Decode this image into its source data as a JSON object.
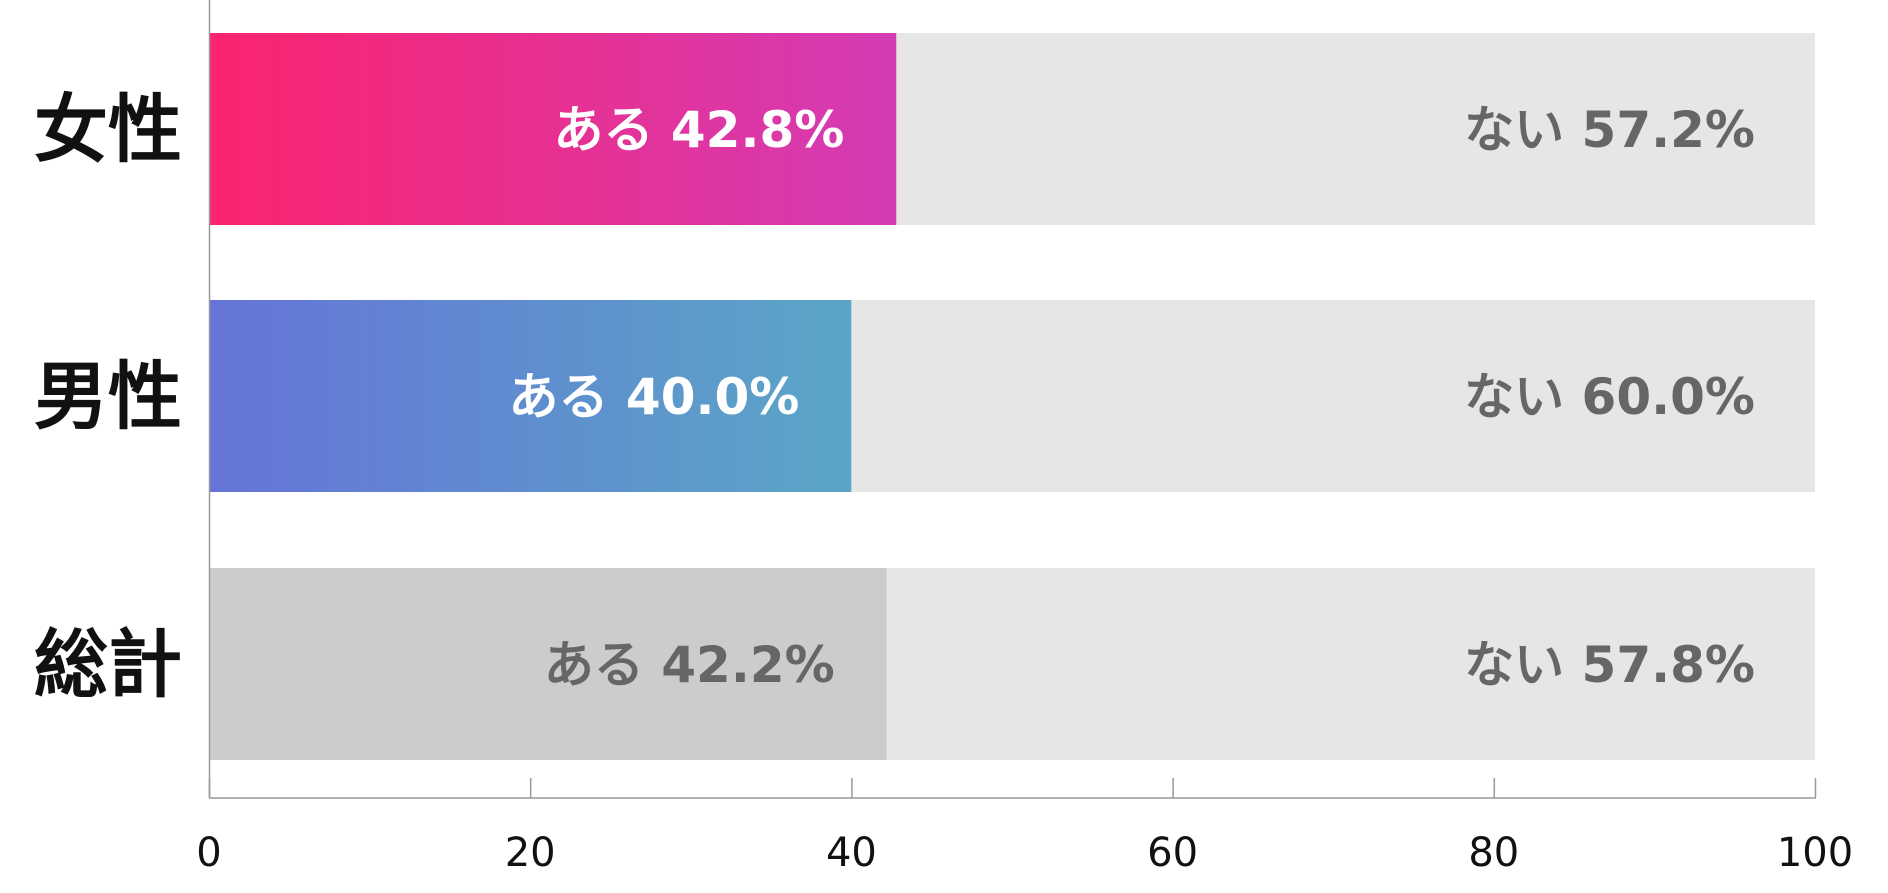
{
  "chart_data": {
    "type": "bar",
    "orientation": "horizontal",
    "stacked": true,
    "categories": [
      "女性",
      "男性",
      "総計"
    ],
    "series": [
      {
        "name": "ある",
        "values": [
          42.8,
          40.0,
          42.2
        ],
        "labels": [
          "ある 42.8%",
          "ある 40.0%",
          "ある 42.2%"
        ],
        "colors": [
          [
            "#fa2470",
            "#d43cb4"
          ],
          [
            "#6574d8",
            "#5aa6c6"
          ],
          [
            "#cccccc",
            "#cccccc"
          ]
        ],
        "label_colors": [
          "#ffffff",
          "#ffffff",
          "#666666"
        ]
      },
      {
        "name": "ない",
        "values": [
          57.2,
          60.0,
          57.8
        ],
        "labels": [
          "ない 57.2%",
          "ない 60.0%",
          "ない 57.8%"
        ],
        "color": "#e6e6e6",
        "label_color": "#666666"
      }
    ],
    "x_ticks": [
      "0",
      "20",
      "40",
      "60",
      "80",
      "100"
    ],
    "xlim": [
      0,
      100
    ],
    "grid": false,
    "legend": "none"
  }
}
